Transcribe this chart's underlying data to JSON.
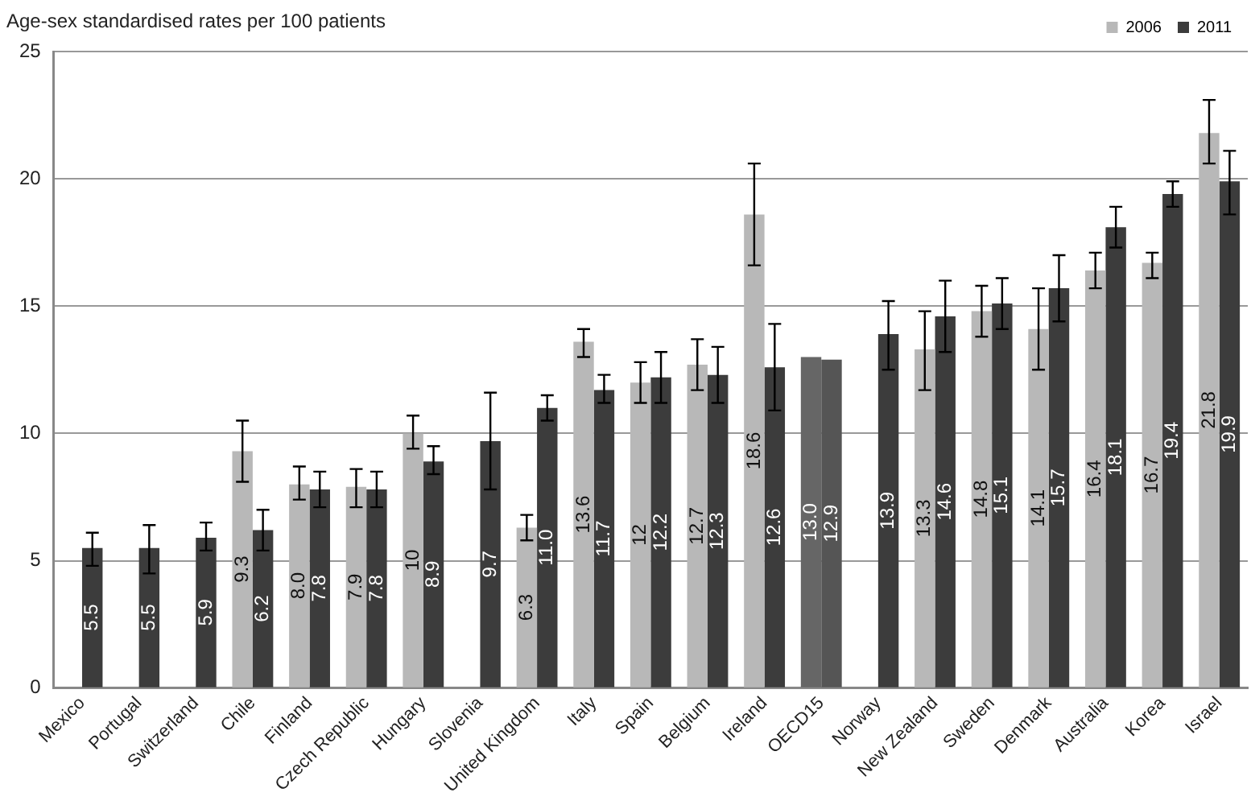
{
  "chart_data": {
    "type": "bar",
    "ylabel": "Age-sex standardised rates per 100 patients",
    "categories": [
      "Mexico",
      "Portugal",
      "Switzerland",
      "Chile",
      "Finland",
      "Czech Republic",
      "Hungary",
      "Slovenia",
      "United Kingdom",
      "Italy",
      "Spain",
      "Belgium",
      "Ireland",
      "OECD15",
      "Norway",
      "New Zealand",
      "Sweden",
      "Denmark",
      "Australia",
      "Korea",
      "Israel"
    ],
    "series": [
      {
        "name": "2006",
        "color": "#b8b8b8",
        "colors": [
          "#b8b8b8",
          "#b8b8b8",
          "#b8b8b8",
          "#b8b8b8",
          "#b8b8b8",
          "#b8b8b8",
          "#b8b8b8",
          "#b8b8b8",
          "#b8b8b8",
          "#b8b8b8",
          "#b8b8b8",
          "#b8b8b8",
          "#b8b8b8",
          "#666666",
          "#b8b8b8",
          "#b8b8b8",
          "#b8b8b8",
          "#b8b8b8",
          "#b8b8b8",
          "#b8b8b8",
          "#b8b8b8"
        ],
        "values": [
          null,
          null,
          null,
          9.3,
          8.0,
          7.9,
          10,
          null,
          6.3,
          13.6,
          12,
          12.7,
          18.6,
          13.0,
          null,
          13.3,
          14.8,
          14.1,
          16.4,
          16.7,
          21.8
        ],
        "value_labels": [
          null,
          null,
          null,
          "9.3",
          "8.0",
          "7.9",
          "10",
          null,
          "6.3",
          "13.6",
          "12",
          "12.7",
          "18.6",
          "13.0",
          null,
          "13.3",
          "14.8",
          "14.1",
          "16.4",
          "16.7",
          "21.8"
        ],
        "errors": [
          null,
          null,
          null,
          [
            8.1,
            10.5
          ],
          [
            7.4,
            8.7
          ],
          [
            7.1,
            8.6
          ],
          [
            9.4,
            10.7
          ],
          null,
          [
            5.8,
            6.8
          ],
          [
            13.0,
            14.1
          ],
          [
            11.2,
            12.8
          ],
          [
            11.7,
            13.7
          ],
          [
            16.6,
            20.6
          ],
          null,
          null,
          [
            11.7,
            14.8
          ],
          [
            13.8,
            15.8
          ],
          [
            12.5,
            15.7
          ],
          [
            15.7,
            17.1
          ],
          [
            16.1,
            17.1
          ],
          [
            20.6,
            23.1
          ]
        ]
      },
      {
        "name": "2011",
        "color": "#3c3c3c",
        "colors": [
          "#3c3c3c",
          "#3c3c3c",
          "#3c3c3c",
          "#3c3c3c",
          "#3c3c3c",
          "#3c3c3c",
          "#3c3c3c",
          "#3c3c3c",
          "#3c3c3c",
          "#3c3c3c",
          "#3c3c3c",
          "#3c3c3c",
          "#3c3c3c",
          "#555555",
          "#3c3c3c",
          "#3c3c3c",
          "#3c3c3c",
          "#3c3c3c",
          "#3c3c3c",
          "#3c3c3c",
          "#3c3c3c"
        ],
        "values": [
          5.5,
          5.5,
          5.9,
          6.2,
          7.8,
          7.8,
          8.9,
          9.7,
          11.0,
          11.7,
          12.2,
          12.3,
          12.6,
          12.9,
          13.9,
          14.6,
          15.1,
          15.7,
          18.1,
          19.4,
          19.9
        ],
        "value_labels": [
          "5.5",
          "5.5",
          "5.9",
          "6.2",
          "7.8",
          "7.8",
          "8.9",
          "9.7",
          "11.0",
          "11.7",
          "12.2",
          "12.3",
          "12.6",
          "12.9",
          "13.9",
          "14.6",
          "15.1",
          "15.7",
          "18.1",
          "19.4",
          "19.9"
        ],
        "errors": [
          [
            4.8,
            6.1
          ],
          [
            4.5,
            6.4
          ],
          [
            5.4,
            6.5
          ],
          [
            5.4,
            7.0
          ],
          [
            7.1,
            8.5
          ],
          [
            7.1,
            8.5
          ],
          [
            8.4,
            9.5
          ],
          [
            7.8,
            11.6
          ],
          [
            10.5,
            11.5
          ],
          [
            11.2,
            12.3
          ],
          [
            11.2,
            13.2
          ],
          [
            11.2,
            13.4
          ],
          [
            10.9,
            14.3
          ],
          null,
          [
            12.5,
            15.2
          ],
          [
            13.2,
            16.0
          ],
          [
            14.1,
            16.1
          ],
          [
            14.4,
            17.0
          ],
          [
            17.3,
            18.9
          ],
          [
            18.9,
            19.9
          ],
          [
            18.6,
            21.1
          ]
        ]
      }
    ],
    "ylim": [
      0,
      25
    ],
    "yticks": [
      0,
      5,
      10,
      15,
      20,
      25
    ],
    "grid": "y",
    "legend": "top right"
  }
}
